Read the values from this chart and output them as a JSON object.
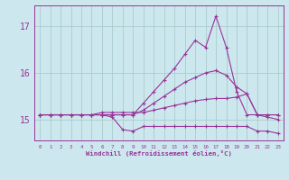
{
  "xlabel": "Windchill (Refroidissement éolien,°C)",
  "background_color": "#cce8ee",
  "grid_color": "#aacccc",
  "line_color": "#993399",
  "text_color": "#993399",
  "xlim": [
    -0.5,
    23.5
  ],
  "ylim": [
    14.55,
    17.45
  ],
  "yticks": [
    15,
    16,
    17
  ],
  "xticks": [
    0,
    1,
    2,
    3,
    4,
    5,
    6,
    7,
    8,
    9,
    10,
    11,
    12,
    13,
    14,
    15,
    16,
    17,
    18,
    19,
    20,
    21,
    22,
    23
  ],
  "lines": [
    {
      "x": [
        0,
        1,
        2,
        3,
        4,
        5,
        6,
        7,
        8,
        9,
        10,
        11,
        12,
        13,
        14,
        15,
        16,
        17,
        18,
        19,
        20,
        21,
        22,
        23
      ],
      "y": [
        15.1,
        15.1,
        15.1,
        15.1,
        15.1,
        15.1,
        15.1,
        15.1,
        15.1,
        15.1,
        15.35,
        15.6,
        15.85,
        16.1,
        16.4,
        16.7,
        16.55,
        17.22,
        16.55,
        15.6,
        15.1,
        15.1,
        15.1,
        15.1
      ]
    },
    {
      "x": [
        0,
        1,
        2,
        3,
        4,
        5,
        6,
        7,
        8,
        9,
        10,
        11,
        12,
        13,
        14,
        15,
        16,
        17,
        18,
        19,
        20,
        21,
        22,
        23
      ],
      "y": [
        15.1,
        15.1,
        15.1,
        15.1,
        15.1,
        15.1,
        15.1,
        15.1,
        15.1,
        15.1,
        15.2,
        15.35,
        15.5,
        15.65,
        15.8,
        15.9,
        16.0,
        16.05,
        15.95,
        15.7,
        15.55,
        15.1,
        15.1,
        15.1
      ]
    },
    {
      "x": [
        0,
        1,
        2,
        3,
        4,
        5,
        6,
        7,
        8,
        9,
        10,
        11,
        12,
        13,
        14,
        15,
        16,
        17,
        18,
        19,
        20,
        21,
        22,
        23
      ],
      "y": [
        15.1,
        15.1,
        15.1,
        15.1,
        15.1,
        15.1,
        15.15,
        15.15,
        15.15,
        15.15,
        15.15,
        15.2,
        15.25,
        15.3,
        15.35,
        15.4,
        15.43,
        15.45,
        15.45,
        15.48,
        15.55,
        15.1,
        15.05,
        15.0
      ]
    },
    {
      "x": [
        0,
        1,
        2,
        3,
        4,
        5,
        6,
        7,
        8,
        9,
        10,
        11,
        12,
        13,
        14,
        15,
        16,
        17,
        18,
        19,
        20,
        21,
        22,
        23
      ],
      "y": [
        15.1,
        15.1,
        15.1,
        15.1,
        15.1,
        15.1,
        15.1,
        15.05,
        14.78,
        14.75,
        14.85,
        14.85,
        14.85,
        14.85,
        14.85,
        14.85,
        14.85,
        14.85,
        14.85,
        14.85,
        14.85,
        14.75,
        14.75,
        14.7
      ]
    }
  ]
}
